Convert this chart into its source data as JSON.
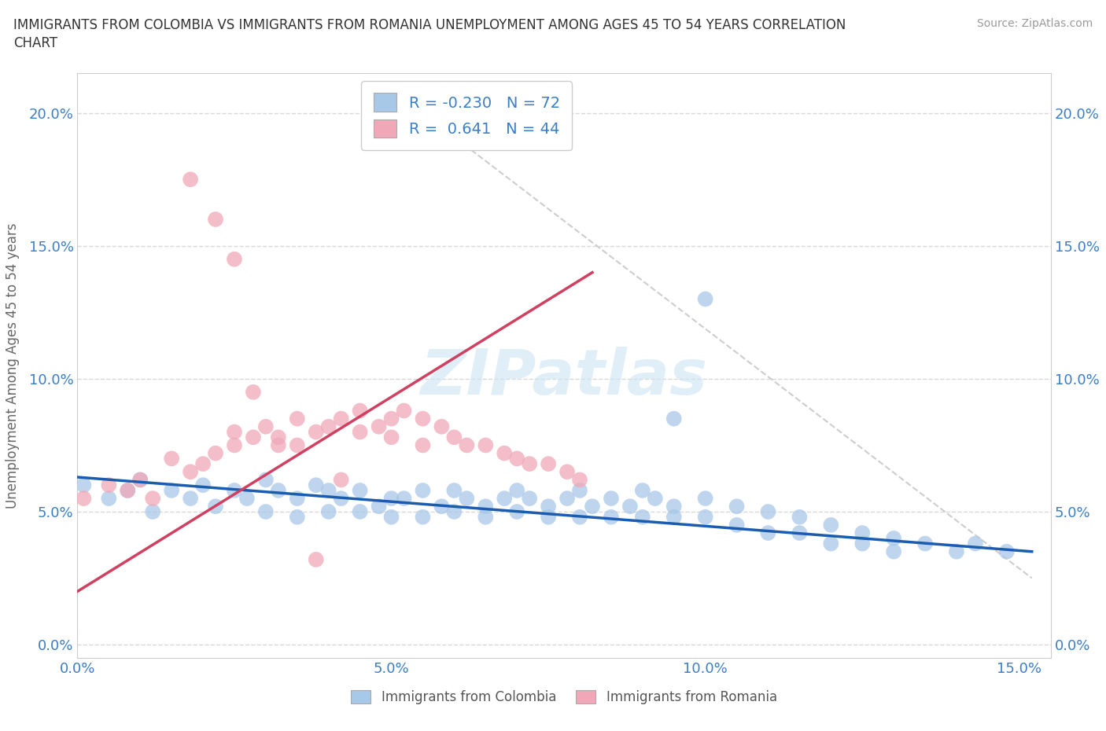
{
  "title": "IMMIGRANTS FROM COLOMBIA VS IMMIGRANTS FROM ROMANIA UNEMPLOYMENT AMONG AGES 45 TO 54 YEARS CORRELATION\nCHART",
  "source": "Source: ZipAtlas.com",
  "ylabel": "Unemployment Among Ages 45 to 54 years",
  "xlim": [
    0.0,
    0.155
  ],
  "ylim": [
    -0.005,
    0.215
  ],
  "xticks": [
    0.0,
    0.05,
    0.1,
    0.15
  ],
  "xticklabels": [
    "0.0%",
    "5.0%",
    "10.0%",
    "15.0%"
  ],
  "yticks": [
    0.0,
    0.05,
    0.1,
    0.15,
    0.2
  ],
  "yticklabels": [
    "0.0%",
    "5.0%",
    "10.0%",
    "15.0%",
    "20.0%"
  ],
  "colombia_color": "#a8c8e8",
  "romania_color": "#f0a8b8",
  "colombia_line_color": "#1a5cb0",
  "romania_line_color": "#d04060",
  "R_colombia": -0.23,
  "N_colombia": 72,
  "R_romania": 0.641,
  "N_romania": 44,
  "colombia_x": [
    0.001,
    0.005,
    0.008,
    0.01,
    0.012,
    0.015,
    0.018,
    0.02,
    0.022,
    0.025,
    0.027,
    0.03,
    0.03,
    0.032,
    0.035,
    0.035,
    0.038,
    0.04,
    0.04,
    0.042,
    0.045,
    0.045,
    0.048,
    0.05,
    0.05,
    0.052,
    0.055,
    0.055,
    0.058,
    0.06,
    0.06,
    0.062,
    0.065,
    0.065,
    0.068,
    0.07,
    0.07,
    0.072,
    0.075,
    0.075,
    0.078,
    0.08,
    0.08,
    0.082,
    0.085,
    0.085,
    0.088,
    0.09,
    0.09,
    0.092,
    0.095,
    0.095,
    0.1,
    0.1,
    0.105,
    0.105,
    0.11,
    0.11,
    0.115,
    0.115,
    0.12,
    0.12,
    0.125,
    0.125,
    0.13,
    0.13,
    0.135,
    0.14,
    0.143,
    0.148,
    0.1,
    0.095
  ],
  "colombia_y": [
    0.06,
    0.055,
    0.058,
    0.062,
    0.05,
    0.058,
    0.055,
    0.06,
    0.052,
    0.058,
    0.055,
    0.062,
    0.05,
    0.058,
    0.055,
    0.048,
    0.06,
    0.058,
    0.05,
    0.055,
    0.058,
    0.05,
    0.052,
    0.055,
    0.048,
    0.055,
    0.058,
    0.048,
    0.052,
    0.058,
    0.05,
    0.055,
    0.052,
    0.048,
    0.055,
    0.058,
    0.05,
    0.055,
    0.052,
    0.048,
    0.055,
    0.058,
    0.048,
    0.052,
    0.055,
    0.048,
    0.052,
    0.058,
    0.048,
    0.055,
    0.052,
    0.048,
    0.055,
    0.048,
    0.052,
    0.045,
    0.05,
    0.042,
    0.048,
    0.042,
    0.045,
    0.038,
    0.042,
    0.038,
    0.04,
    0.035,
    0.038,
    0.035,
    0.038,
    0.035,
    0.13,
    0.085
  ],
  "romania_x": [
    0.001,
    0.005,
    0.008,
    0.01,
    0.012,
    0.015,
    0.018,
    0.02,
    0.022,
    0.025,
    0.025,
    0.028,
    0.03,
    0.032,
    0.035,
    0.035,
    0.038,
    0.04,
    0.042,
    0.045,
    0.045,
    0.048,
    0.05,
    0.05,
    0.052,
    0.055,
    0.055,
    0.058,
    0.06,
    0.062,
    0.065,
    0.068,
    0.07,
    0.072,
    0.075,
    0.078,
    0.08,
    0.018,
    0.022,
    0.025,
    0.028,
    0.032,
    0.038,
    0.042
  ],
  "romania_y": [
    0.055,
    0.06,
    0.058,
    0.062,
    0.055,
    0.07,
    0.065,
    0.068,
    0.072,
    0.075,
    0.08,
    0.078,
    0.082,
    0.078,
    0.085,
    0.075,
    0.08,
    0.082,
    0.085,
    0.08,
    0.088,
    0.082,
    0.085,
    0.078,
    0.088,
    0.085,
    0.075,
    0.082,
    0.078,
    0.075,
    0.075,
    0.072,
    0.07,
    0.068,
    0.068,
    0.065,
    0.062,
    0.175,
    0.16,
    0.145,
    0.095,
    0.075,
    0.032,
    0.062
  ]
}
